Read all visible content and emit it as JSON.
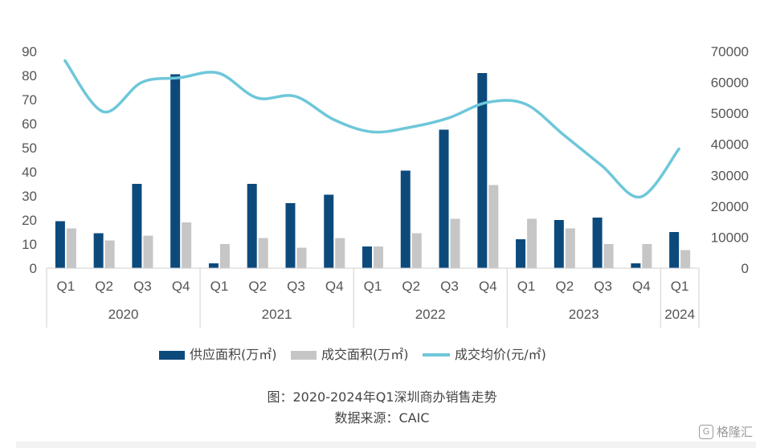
{
  "chart_data": {
    "type": "bar",
    "caption": "图：2020-2024年Q1深圳商办销售走势",
    "source": "数据来源：CAIC",
    "categories": [
      "Q1",
      "Q2",
      "Q3",
      "Q4",
      "Q1",
      "Q2",
      "Q3",
      "Q4",
      "Q1",
      "Q2",
      "Q3",
      "Q4",
      "Q1",
      "Q2",
      "Q3",
      "Q4",
      "Q1"
    ],
    "years": [
      {
        "label": "2020",
        "count": 4
      },
      {
        "label": "2021",
        "count": 4
      },
      {
        "label": "2022",
        "count": 4
      },
      {
        "label": "2023",
        "count": 4
      },
      {
        "label": "2024",
        "count": 1
      }
    ],
    "y_left": {
      "ticks": [
        0,
        10,
        20,
        30,
        40,
        50,
        60,
        70,
        80,
        90
      ],
      "ylim": [
        0,
        90
      ]
    },
    "y_right": {
      "ticks": [
        0,
        10000,
        20000,
        30000,
        40000,
        50000,
        60000,
        70000
      ],
      "ylim": [
        0,
        70000
      ]
    },
    "series": [
      {
        "name": "供应面积(万㎡)",
        "type": "bar",
        "axis": "left",
        "color": "#0d4a7c",
        "values": [
          19.5,
          14.5,
          35,
          80.5,
          2,
          35,
          27,
          30.5,
          9,
          40.5,
          57.5,
          81,
          12,
          20,
          21,
          2,
          15
        ]
      },
      {
        "name": "成交面积(万㎡)",
        "type": "bar",
        "axis": "left",
        "color": "#c6c6c6",
        "values": [
          16.5,
          11.5,
          13.5,
          19,
          10,
          12.5,
          8.5,
          12.5,
          9,
          14.5,
          20.5,
          34.5,
          20.5,
          16.5,
          10,
          10,
          7.5
        ]
      },
      {
        "name": "成交均价(元/㎡)",
        "type": "line",
        "axis": "right",
        "color": "#6ec7d9",
        "values": [
          67000,
          50500,
          60000,
          61500,
          63000,
          55000,
          55500,
          48000,
          44000,
          45500,
          48500,
          53500,
          53000,
          43000,
          33000,
          23000,
          38500
        ]
      }
    ],
    "legend_position": "bottom",
    "grid": false
  },
  "watermark": {
    "icon": "G",
    "text": "格隆汇"
  }
}
